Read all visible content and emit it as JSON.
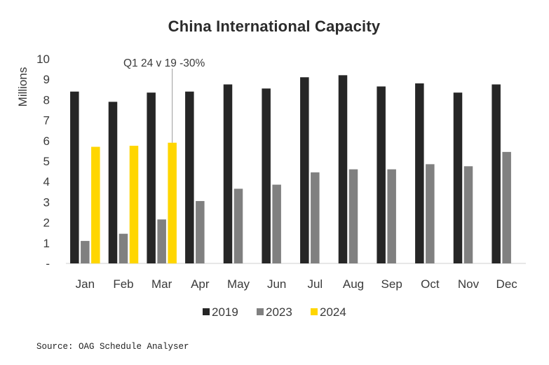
{
  "chart_data": {
    "type": "bar",
    "title": "China International Capacity",
    "ylabel": "Millions",
    "xlabel": "",
    "ylim": [
      0,
      10
    ],
    "yticks": [
      "-",
      "1",
      "2",
      "3",
      "4",
      "5",
      "6",
      "7",
      "8",
      "9",
      "10"
    ],
    "categories": [
      "Jan",
      "Feb",
      "Mar",
      "Apr",
      "May",
      "Jun",
      "Jul",
      "Aug",
      "Sep",
      "Oct",
      "Nov",
      "Dec"
    ],
    "series": [
      {
        "name": "2019",
        "color": "#262626",
        "values": [
          8.4,
          7.9,
          8.35,
          8.4,
          8.75,
          8.55,
          9.1,
          9.2,
          8.65,
          8.8,
          8.35,
          8.75
        ]
      },
      {
        "name": "2023",
        "color": "#808080",
        "values": [
          1.1,
          1.45,
          2.15,
          3.05,
          3.65,
          3.85,
          4.45,
          4.6,
          4.6,
          4.85,
          4.75,
          5.45
        ]
      },
      {
        "name": "2024",
        "color": "#ffd600",
        "values": [
          5.7,
          5.75,
          5.9,
          null,
          null,
          null,
          null,
          null,
          null,
          null,
          null,
          null
        ]
      }
    ],
    "annotation": {
      "text": "Q1 24 v 19 -30%",
      "category": "Mar",
      "series": "2024"
    },
    "legend_position": "bottom",
    "grid": false
  },
  "source": "Source: OAG Schedule Analyser"
}
